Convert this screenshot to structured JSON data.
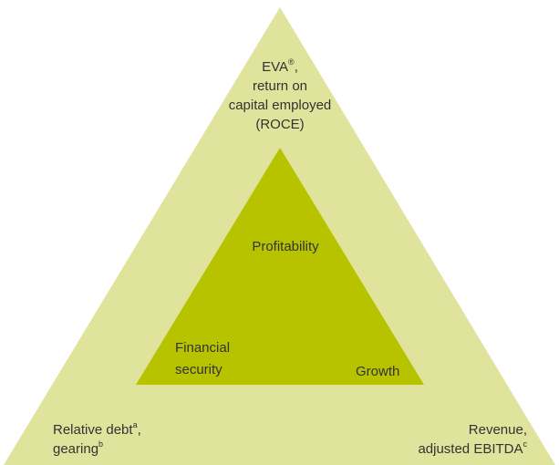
{
  "outer": {
    "top_label": [
      {
        "text": "EVA",
        "sup": "®",
        "after": ","
      },
      {
        "text": "return on"
      },
      {
        "text": "capital employed"
      },
      {
        "text": "(ROCE)"
      }
    ],
    "left_label": [
      {
        "text": "Relative debt",
        "sup": "a",
        "after": ","
      },
      {
        "text": "gearing",
        "sup": "b"
      }
    ],
    "right_label": [
      {
        "text": "Revenue,"
      },
      {
        "text": "adjusted EBITDA",
        "sup": "c"
      }
    ]
  },
  "inner": {
    "top_label": "Profitability",
    "left_label": [
      "Financial",
      "security"
    ],
    "right_label": "Growth"
  }
}
